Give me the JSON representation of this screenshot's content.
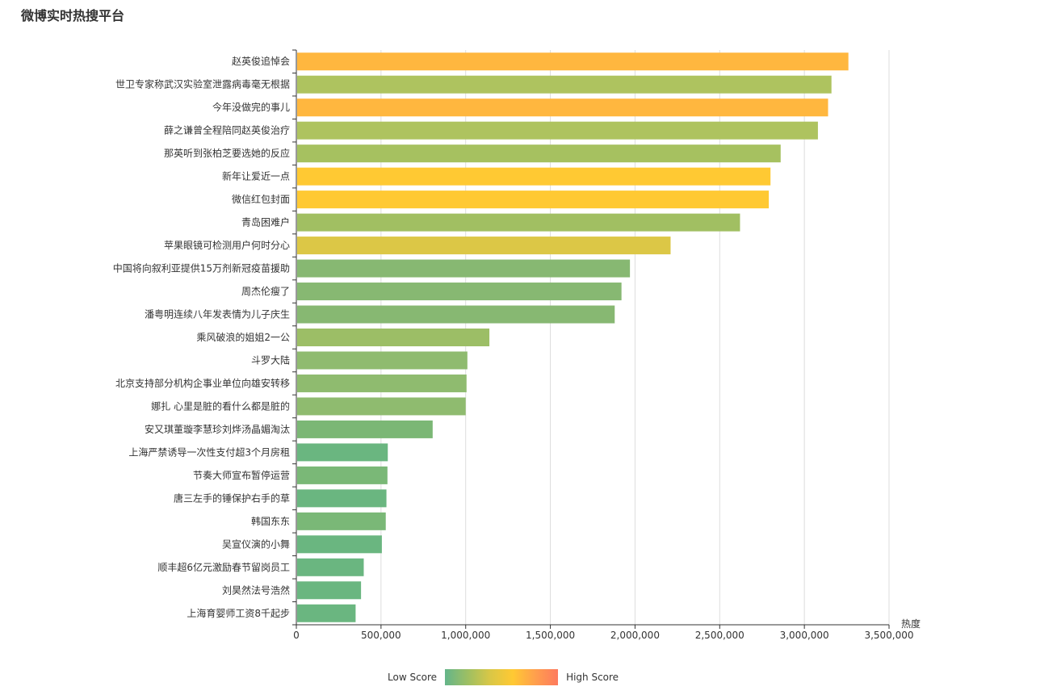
{
  "page": {
    "title": "微博实时热搜平台"
  },
  "legend": {
    "low_label": "Low Score",
    "high_label": "High Score"
  },
  "chart_data": {
    "type": "bar",
    "orientation": "horizontal",
    "title": "微博实时热搜平台",
    "xlabel": "热度",
    "xlim": [
      0,
      3500000
    ],
    "x_ticks": [
      "0",
      "500,000",
      "1,000,000",
      "1,500,000",
      "2,000,000",
      "2,500,000",
      "3,000,000",
      "3,500,000"
    ],
    "x_tick_values": [
      0,
      500000,
      1000000,
      1500000,
      2000000,
      2500000,
      3000000,
      3500000
    ],
    "grid": "vertical",
    "legend_position": "bottom",
    "categories": [
      "赵英俊追悼会",
      "世卫专家称武汉实验室泄露病毒毫无根据",
      "今年没做完的事儿",
      "薛之谦曾全程陪同赵英俊治疗",
      "那英听到张柏芝要选她的反应",
      "新年让爱近一点",
      "微信红包封面",
      "青岛困难户",
      "苹果眼镜可检测用户何时分心",
      "中国将向叙利亚提供15万剂新冠疫苗援助",
      "周杰伦瘦了",
      "潘粤明连续八年发表情为儿子庆生",
      "乘风破浪的姐姐2一公",
      "斗罗大陆",
      "北京支持部分机构企事业单位向雄安转移",
      "娜扎 心里是脏的看什么都是脏的",
      "安又琪董璇李慧珍刘烨汤晶媚淘汰",
      "上海严禁诱导一次性支付超3个月房租",
      "节奏大师宣布暂停运营",
      "唐三左手的锤保护右手的草",
      "韩国东东",
      "吴宣仪演的小舞",
      "顺丰超6亿元激励春节留岗员工",
      "刘昊然法号浩然",
      "上海育婴师工资8千起步"
    ],
    "values": [
      3260000,
      3160000,
      3140000,
      3080000,
      2860000,
      2800000,
      2790000,
      2620000,
      2210000,
      1970000,
      1920000,
      1880000,
      1140000,
      1010000,
      1005000,
      1000000,
      805000,
      540000,
      538000,
      532000,
      528000,
      505000,
      398000,
      382000,
      350000
    ],
    "colors": [
      "#ffb73f",
      "#aec35f",
      "#ffb73f",
      "#aec35f",
      "#a6c160",
      "#ffc933",
      "#ffc933",
      "#a1bf62",
      "#dcc746",
      "#87b872",
      "#87b872",
      "#87b872",
      "#9cbe66",
      "#8fbb6f",
      "#8fbb6f",
      "#8fbb6f",
      "#7bb775",
      "#6ab680",
      "#7ab877",
      "#6ab680",
      "#7ab877",
      "#6ab680",
      "#6ab680",
      "#6ab680",
      "#6ab680"
    ]
  }
}
